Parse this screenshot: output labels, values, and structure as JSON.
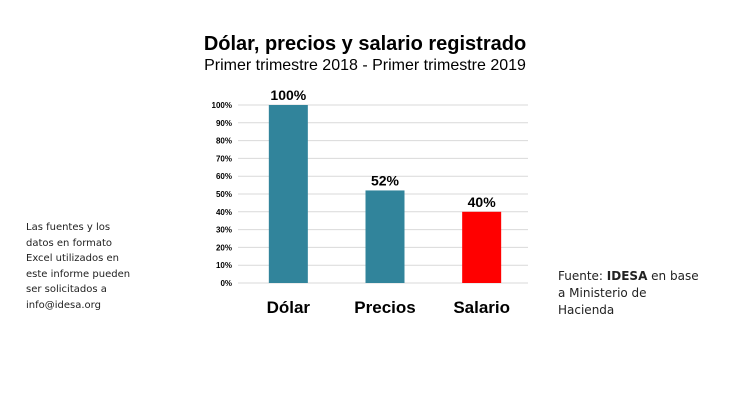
{
  "header": {
    "title": "Dólar, precios y salario registrado",
    "subtitle": "Primer trimestre 2018 -  Primer trimestre 2019"
  },
  "left_note": {
    "lines": [
      "Las fuentes y los",
      "datos en formato",
      "Excel utilizados en",
      "este informe pueden",
      "ser solicitados a",
      "info@idesa.org"
    ]
  },
  "source": {
    "prefix": "Fuente: ",
    "org": "IDESA",
    "line1_suffix": " en base",
    "line2": "a Ministerio de",
    "line3": "Hacienda"
  },
  "chart_data": {
    "type": "bar",
    "categories": [
      "Dólar",
      "Precios",
      "Salario"
    ],
    "values": [
      100,
      52,
      40
    ],
    "data_labels": [
      "100%",
      "52%",
      "40%"
    ],
    "colors": [
      "#31849B",
      "#31849B",
      "#FF0000"
    ],
    "ylim": [
      0,
      100
    ],
    "yticks": [
      "0%",
      "10%",
      "20%",
      "30%",
      "40%",
      "50%",
      "60%",
      "70%",
      "80%",
      "90%",
      "100%"
    ],
    "grid": true,
    "gridColor": "#D9D9D9"
  }
}
